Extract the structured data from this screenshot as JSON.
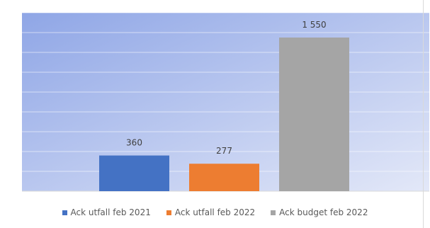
{
  "chart_data": {
    "type": "bar",
    "categories": [
      "Ack utfall feb 2021",
      "Ack utfall feb 2022",
      "Ack budget feb 2022"
    ],
    "values": [
      360,
      277,
      1550
    ],
    "data_labels": [
      "360",
      "277",
      "1 550"
    ],
    "colors": [
      "#4472c4",
      "#ed7d31",
      "#a5a5a5"
    ],
    "ylim": [
      0,
      1800
    ],
    "grid": true,
    "legend": "bottom",
    "title": "",
    "xlabel": "",
    "ylabel": ""
  },
  "legend": {
    "items": [
      {
        "label": "Ack utfall feb 2021",
        "color": "#4472c4"
      },
      {
        "label": "Ack utfall feb 2022",
        "color": "#ed7d31"
      },
      {
        "label": "Ack budget feb 2022",
        "color": "#a5a5a5"
      }
    ]
  },
  "plot_background": {
    "gradient_start": "#8fa6e6",
    "gradient_end": "#e3e8f8"
  }
}
